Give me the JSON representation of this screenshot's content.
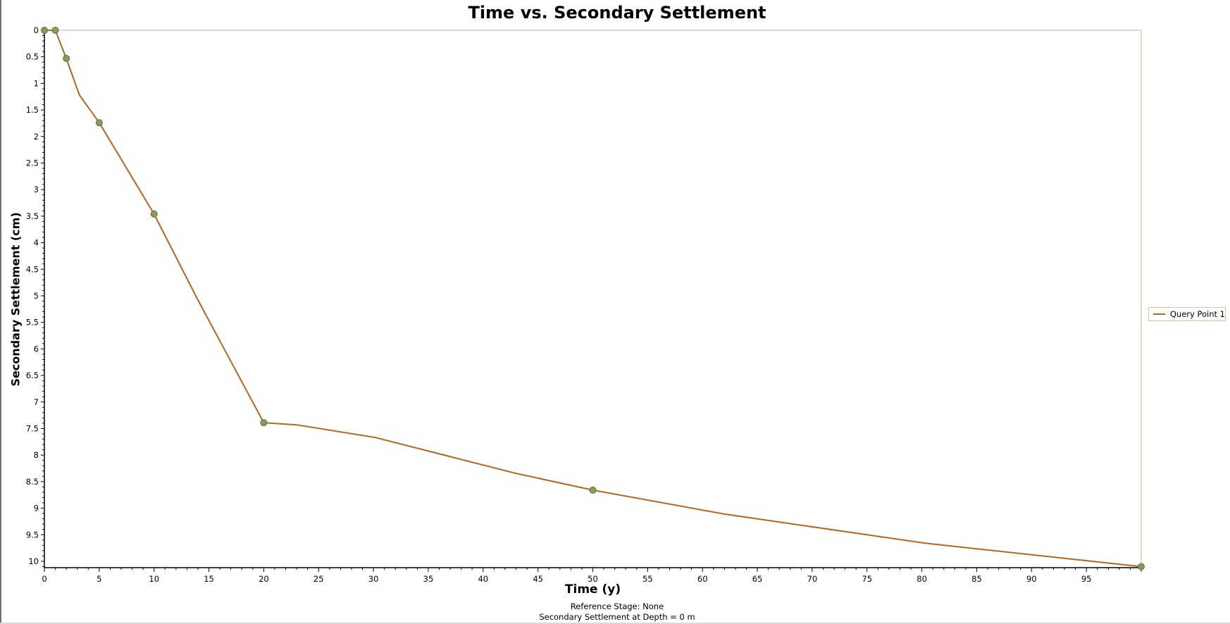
{
  "chart_data": {
    "type": "line",
    "title": "Time vs. Secondary Settlement",
    "xlabel": "Time (y)",
    "ylabel": "Secondary Settlement (cm)",
    "xlim": [
      0,
      100
    ],
    "ylim": [
      0,
      10.12
    ],
    "y_inverted": true,
    "grid": false,
    "legend_position": "right",
    "x_ticks": [
      0,
      5,
      10,
      15,
      20,
      25,
      30,
      35,
      40,
      45,
      50,
      55,
      60,
      65,
      70,
      75,
      80,
      85,
      90,
      95
    ],
    "x_tick_labels": [
      "0",
      "5",
      "10",
      "15",
      "20",
      "25",
      "30",
      "35",
      "40",
      "45",
      "50",
      "55",
      "60",
      "65",
      "70",
      "75",
      "80",
      "85",
      "90",
      "95"
    ],
    "y_ticks": [
      0,
      0.5,
      1,
      1.5,
      2,
      2.5,
      3,
      3.5,
      4,
      4.5,
      5,
      5.5,
      6,
      6.5,
      7,
      7.5,
      8,
      8.5,
      9,
      9.5,
      10
    ],
    "y_tick_labels": [
      "0",
      "0.5",
      "1",
      "1.5",
      "2",
      "2.5",
      "3",
      "3.5",
      "4",
      "4.5",
      "5",
      "5.5",
      "6",
      "6.5",
      "7",
      "7.5",
      "8",
      "8.5",
      "9",
      "9.5",
      "10"
    ],
    "series": [
      {
        "name": "Query Point 1",
        "color": "#b5651d",
        "marker_color": "#8a9a5b",
        "x": [
          0,
          1,
          2,
          3.2,
          5,
          10,
          13.9,
          20,
          23,
          30.2,
          42.9,
          50,
          62,
          80.3,
          100
        ],
        "y": [
          0,
          0,
          0.53,
          1.22,
          1.74,
          3.46,
          5.04,
          7.39,
          7.43,
          7.67,
          8.34,
          8.66,
          9.11,
          9.66,
          10.1
        ],
        "markers": [
          {
            "x": 0,
            "y": 0
          },
          {
            "x": 1,
            "y": 0
          },
          {
            "x": 2,
            "y": 0.53
          },
          {
            "x": 5,
            "y": 1.74
          },
          {
            "x": 10,
            "y": 3.46
          },
          {
            "x": 20,
            "y": 7.39
          },
          {
            "x": 50,
            "y": 8.66
          },
          {
            "x": 100,
            "y": 10.1
          }
        ]
      }
    ],
    "annotations": [
      "Reference Stage: None",
      "Secondary Settlement at Depth = 0 m"
    ]
  },
  "legend": {
    "items": [
      {
        "label": "Query Point 1",
        "color": "#b5651d"
      }
    ]
  },
  "captions": {
    "reference_stage": "Reference Stage: None",
    "depth": "Secondary Settlement at Depth = 0 m"
  },
  "colors": {
    "line": "#b5651d",
    "marker_fill": "#8a9a5b",
    "marker_stroke": "#5f6e3a",
    "plot_border": "#c8c8a8",
    "axis": "#000000"
  }
}
